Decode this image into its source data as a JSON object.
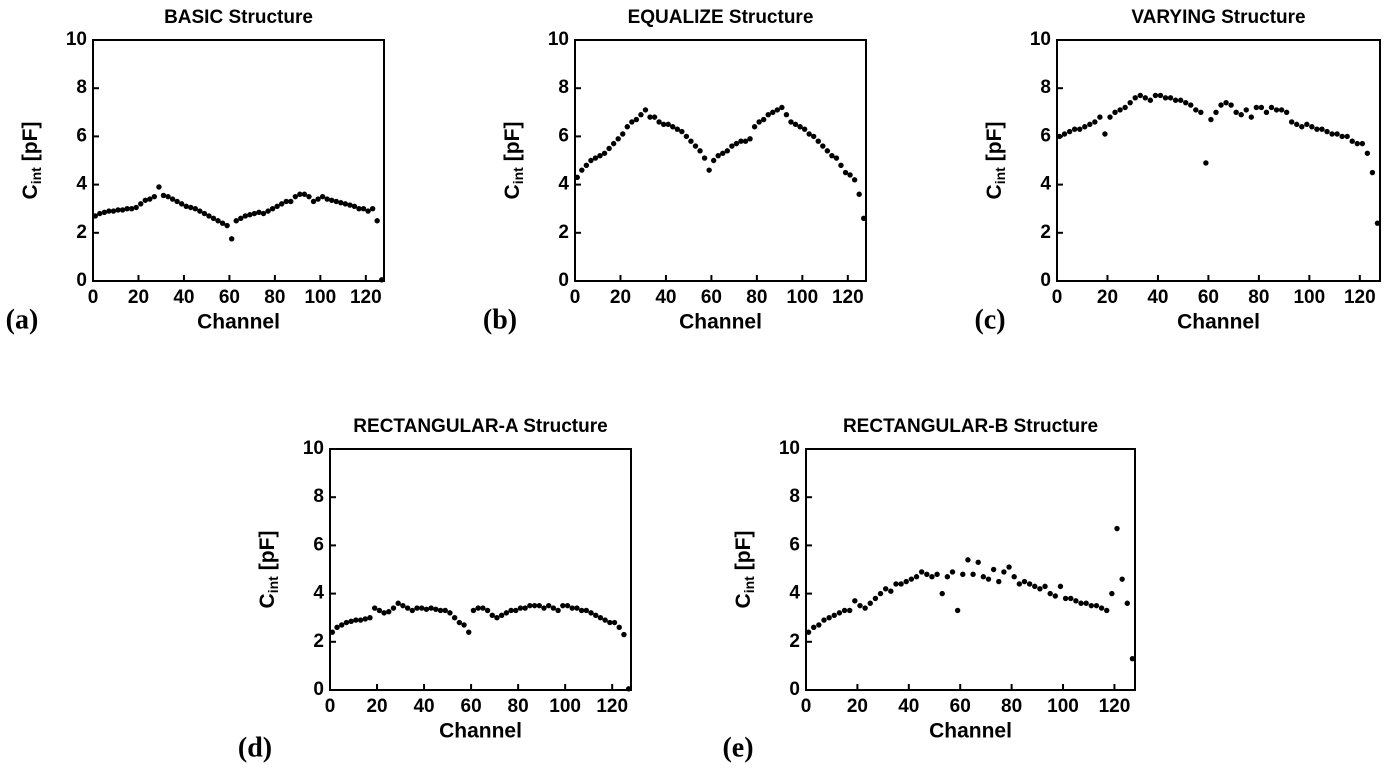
{
  "chart_data": [
    {
      "type": "scatter",
      "title": "BASIC Structure",
      "panel_label": "(a)",
      "xlabel": "Channel",
      "ylabel": "C",
      "ylabel_subscript": "int",
      "ylabel_unit": "[pF]",
      "color": "#000000",
      "xlim": [
        0,
        128
      ],
      "ylim": [
        0,
        10
      ],
      "xticks": [
        0,
        20,
        40,
        60,
        80,
        100,
        120
      ],
      "yticks": [
        0,
        2,
        4,
        6,
        8,
        10
      ],
      "x": [
        1,
        3,
        5,
        7,
        9,
        11,
        13,
        15,
        17,
        19,
        21,
        23,
        25,
        27,
        29,
        31,
        33,
        35,
        37,
        39,
        41,
        43,
        45,
        47,
        49,
        51,
        53,
        55,
        57,
        59,
        61,
        63,
        65,
        67,
        69,
        71,
        73,
        75,
        77,
        79,
        81,
        83,
        85,
        87,
        89,
        91,
        93,
        95,
        97,
        99,
        101,
        103,
        105,
        107,
        109,
        111,
        113,
        115,
        117,
        119,
        121,
        123,
        125,
        127
      ],
      "values": [
        2.7,
        2.8,
        2.85,
        2.9,
        2.9,
        2.95,
        2.95,
        3.0,
        3.0,
        3.05,
        3.2,
        3.35,
        3.4,
        3.5,
        3.9,
        3.55,
        3.5,
        3.4,
        3.3,
        3.2,
        3.1,
        3.05,
        3.0,
        2.9,
        2.8,
        2.7,
        2.6,
        2.5,
        2.4,
        2.3,
        1.75,
        2.5,
        2.6,
        2.7,
        2.75,
        2.8,
        2.85,
        2.8,
        2.9,
        3.0,
        3.1,
        3.2,
        3.3,
        3.3,
        3.5,
        3.6,
        3.6,
        3.5,
        3.3,
        3.4,
        3.5,
        3.4,
        3.35,
        3.3,
        3.25,
        3.2,
        3.15,
        3.1,
        3.0,
        3.0,
        2.9,
        3.0,
        2.5,
        0.05
      ]
    },
    {
      "type": "scatter",
      "title": "EQUALIZE Structure",
      "panel_label": "(b)",
      "xlabel": "Channel",
      "ylabel": "C",
      "ylabel_subscript": "int",
      "ylabel_unit": "[pF]",
      "color": "#000000",
      "xlim": [
        0,
        128
      ],
      "ylim": [
        0,
        10
      ],
      "xticks": [
        0,
        20,
        40,
        60,
        80,
        100,
        120
      ],
      "yticks": [
        0,
        2,
        4,
        6,
        8,
        10
      ],
      "x": [
        1,
        3,
        5,
        7,
        9,
        11,
        13,
        15,
        17,
        19,
        21,
        23,
        25,
        27,
        29,
        31,
        33,
        35,
        37,
        39,
        41,
        43,
        45,
        47,
        49,
        51,
        53,
        55,
        57,
        59,
        61,
        63,
        65,
        67,
        69,
        71,
        73,
        75,
        77,
        79,
        81,
        83,
        85,
        87,
        89,
        91,
        93,
        95,
        97,
        99,
        101,
        103,
        105,
        107,
        109,
        111,
        113,
        115,
        117,
        119,
        121,
        123,
        125,
        127
      ],
      "values": [
        4.3,
        4.6,
        4.8,
        5.0,
        5.1,
        5.2,
        5.3,
        5.5,
        5.7,
        5.9,
        6.1,
        6.4,
        6.6,
        6.7,
        6.9,
        7.1,
        6.8,
        6.8,
        6.6,
        6.5,
        6.5,
        6.4,
        6.3,
        6.2,
        6.0,
        5.8,
        5.6,
        5.4,
        5.1,
        4.6,
        5.0,
        5.2,
        5.3,
        5.4,
        5.6,
        5.7,
        5.8,
        5.8,
        5.9,
        6.4,
        6.6,
        6.7,
        6.9,
        7.0,
        7.1,
        7.2,
        6.9,
        6.6,
        6.5,
        6.4,
        6.3,
        6.1,
        6.0,
        5.8,
        5.6,
        5.4,
        5.2,
        5.1,
        4.8,
        4.5,
        4.4,
        4.2,
        3.6,
        2.6
      ]
    },
    {
      "type": "scatter",
      "title": "VARYING Structure",
      "panel_label": "(c)",
      "xlabel": "Channel",
      "ylabel": "C",
      "ylabel_subscript": "int",
      "ylabel_unit": "[pF]",
      "color": "#000000",
      "xlim": [
        0,
        128
      ],
      "ylim": [
        0,
        10
      ],
      "xticks": [
        0,
        20,
        40,
        60,
        80,
        100,
        120
      ],
      "yticks": [
        0,
        2,
        4,
        6,
        8,
        10
      ],
      "x": [
        1,
        3,
        5,
        7,
        9,
        11,
        13,
        15,
        17,
        19,
        21,
        23,
        25,
        27,
        29,
        31,
        33,
        35,
        37,
        39,
        41,
        43,
        45,
        47,
        49,
        51,
        53,
        55,
        57,
        59,
        61,
        63,
        65,
        67,
        69,
        71,
        73,
        75,
        77,
        79,
        81,
        83,
        85,
        87,
        89,
        91,
        93,
        95,
        97,
        99,
        101,
        103,
        105,
        107,
        109,
        111,
        113,
        115,
        117,
        119,
        121,
        123,
        125,
        127
      ],
      "values": [
        6.0,
        6.1,
        6.2,
        6.3,
        6.3,
        6.4,
        6.5,
        6.6,
        6.8,
        6.1,
        6.8,
        7.0,
        7.1,
        7.2,
        7.4,
        7.6,
        7.7,
        7.6,
        7.5,
        7.7,
        7.7,
        7.6,
        7.6,
        7.5,
        7.5,
        7.4,
        7.3,
        7.1,
        7.0,
        4.9,
        6.7,
        7.0,
        7.3,
        7.4,
        7.3,
        7.0,
        6.9,
        7.1,
        6.8,
        7.2,
        7.2,
        7.0,
        7.2,
        7.1,
        7.1,
        7.0,
        6.6,
        6.5,
        6.4,
        6.5,
        6.4,
        6.3,
        6.3,
        6.2,
        6.1,
        6.1,
        6.0,
        6.0,
        5.8,
        5.7,
        5.7,
        5.3,
        4.5,
        2.4
      ]
    },
    {
      "type": "scatter",
      "title": "RECTANGULAR-A Structure",
      "panel_label": "(d)",
      "xlabel": "Channel",
      "ylabel": "C",
      "ylabel_subscript": "int",
      "ylabel_unit": "[pF]",
      "color": "#000000",
      "xlim": [
        0,
        128
      ],
      "ylim": [
        0,
        10
      ],
      "xticks": [
        0,
        20,
        40,
        60,
        80,
        100,
        120
      ],
      "yticks": [
        0,
        2,
        4,
        6,
        8,
        10
      ],
      "x": [
        1,
        3,
        5,
        7,
        9,
        11,
        13,
        15,
        17,
        19,
        21,
        23,
        25,
        27,
        29,
        31,
        33,
        35,
        37,
        39,
        41,
        43,
        45,
        47,
        49,
        51,
        53,
        55,
        57,
        59,
        61,
        63,
        65,
        67,
        69,
        71,
        73,
        75,
        77,
        79,
        81,
        83,
        85,
        87,
        89,
        91,
        93,
        95,
        97,
        99,
        101,
        103,
        105,
        107,
        109,
        111,
        113,
        115,
        117,
        119,
        121,
        123,
        125,
        127
      ],
      "values": [
        2.4,
        2.6,
        2.7,
        2.8,
        2.85,
        2.9,
        2.9,
        2.95,
        3.0,
        3.4,
        3.3,
        3.2,
        3.25,
        3.4,
        3.6,
        3.5,
        3.4,
        3.3,
        3.4,
        3.4,
        3.35,
        3.4,
        3.35,
        3.3,
        3.3,
        3.2,
        3.0,
        2.8,
        2.7,
        2.4,
        3.3,
        3.4,
        3.4,
        3.3,
        3.1,
        3.0,
        3.1,
        3.2,
        3.3,
        3.3,
        3.4,
        3.4,
        3.5,
        3.5,
        3.5,
        3.4,
        3.5,
        3.4,
        3.3,
        3.5,
        3.5,
        3.4,
        3.4,
        3.3,
        3.3,
        3.2,
        3.1,
        3.0,
        2.9,
        2.8,
        2.8,
        2.6,
        2.3,
        0.05
      ]
    },
    {
      "type": "scatter",
      "title": "RECTANGULAR-B Structure",
      "panel_label": "(e)",
      "xlabel": "Channel",
      "ylabel": "C",
      "ylabel_subscript": "int",
      "ylabel_unit": "[pF]",
      "color": "#000000",
      "xlim": [
        0,
        128
      ],
      "ylim": [
        0,
        10
      ],
      "xticks": [
        0,
        20,
        40,
        60,
        80,
        100,
        120
      ],
      "yticks": [
        0,
        2,
        4,
        6,
        8,
        10
      ],
      "x": [
        1,
        3,
        5,
        7,
        9,
        11,
        13,
        15,
        17,
        19,
        21,
        23,
        25,
        27,
        29,
        31,
        33,
        35,
        37,
        39,
        41,
        43,
        45,
        47,
        49,
        51,
        53,
        55,
        57,
        59,
        61,
        63,
        65,
        67,
        69,
        71,
        73,
        75,
        77,
        79,
        81,
        83,
        85,
        87,
        89,
        91,
        93,
        95,
        97,
        99,
        101,
        103,
        105,
        107,
        109,
        111,
        113,
        115,
        117,
        119,
        121,
        123,
        125,
        127
      ],
      "values": [
        2.4,
        2.6,
        2.7,
        2.9,
        3.0,
        3.1,
        3.2,
        3.3,
        3.3,
        3.7,
        3.5,
        3.4,
        3.6,
        3.8,
        4.0,
        4.2,
        4.1,
        4.4,
        4.4,
        4.5,
        4.6,
        4.7,
        4.9,
        4.8,
        4.7,
        4.8,
        4.0,
        4.7,
        4.9,
        3.3,
        4.8,
        5.4,
        4.8,
        5.3,
        4.7,
        4.6,
        5.0,
        4.5,
        4.9,
        5.1,
        4.7,
        4.4,
        4.5,
        4.4,
        4.3,
        4.2,
        4.3,
        4.0,
        3.9,
        4.3,
        3.8,
        3.8,
        3.7,
        3.6,
        3.6,
        3.5,
        3.5,
        3.4,
        3.3,
        4.0,
        6.7,
        4.6,
        3.6,
        1.3
      ]
    }
  ]
}
